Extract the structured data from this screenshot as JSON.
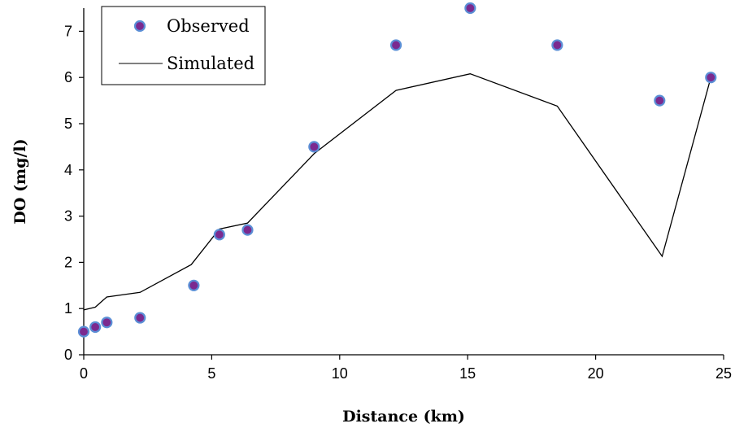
{
  "chart_data": {
    "type": "scatter",
    "title": "",
    "xlabel": "Distance (km)",
    "ylabel": "DO (mg/l)",
    "xlim": [
      0,
      25
    ],
    "ylim": [
      0,
      7.5
    ],
    "xticks": [
      "0",
      "5",
      "10",
      "15",
      "20",
      "25"
    ],
    "yticks": [
      "0",
      "1",
      "2",
      "3",
      "4",
      "5",
      "6",
      "7"
    ],
    "grid": false,
    "legend_position": "top-left",
    "series": [
      {
        "name": "Observed",
        "type": "scatter",
        "marker_fill": "#7b2a8f",
        "marker_edge": "#5b8fd6",
        "points": [
          [
            0.0,
            0.5
          ],
          [
            0.45,
            0.6
          ],
          [
            0.9,
            0.7
          ],
          [
            2.2,
            0.8
          ],
          [
            4.3,
            1.5
          ],
          [
            5.3,
            2.6
          ],
          [
            6.4,
            2.7
          ],
          [
            9.0,
            4.5
          ],
          [
            12.2,
            6.7
          ],
          [
            15.1,
            7.5
          ],
          [
            18.5,
            6.7
          ],
          [
            22.5,
            5.5
          ],
          [
            24.5,
            6.0
          ]
        ]
      },
      {
        "name": "Simulated",
        "type": "line",
        "color": "#000000",
        "points": [
          [
            0.0,
            0.97
          ],
          [
            0.45,
            1.03
          ],
          [
            0.9,
            1.25
          ],
          [
            2.2,
            1.35
          ],
          [
            4.2,
            1.95
          ],
          [
            5.3,
            2.72
          ],
          [
            6.4,
            2.85
          ],
          [
            9.0,
            4.35
          ],
          [
            12.2,
            5.72
          ],
          [
            15.1,
            6.08
          ],
          [
            18.5,
            5.38
          ],
          [
            22.6,
            2.13
          ],
          [
            24.5,
            6.0
          ]
        ]
      }
    ]
  }
}
